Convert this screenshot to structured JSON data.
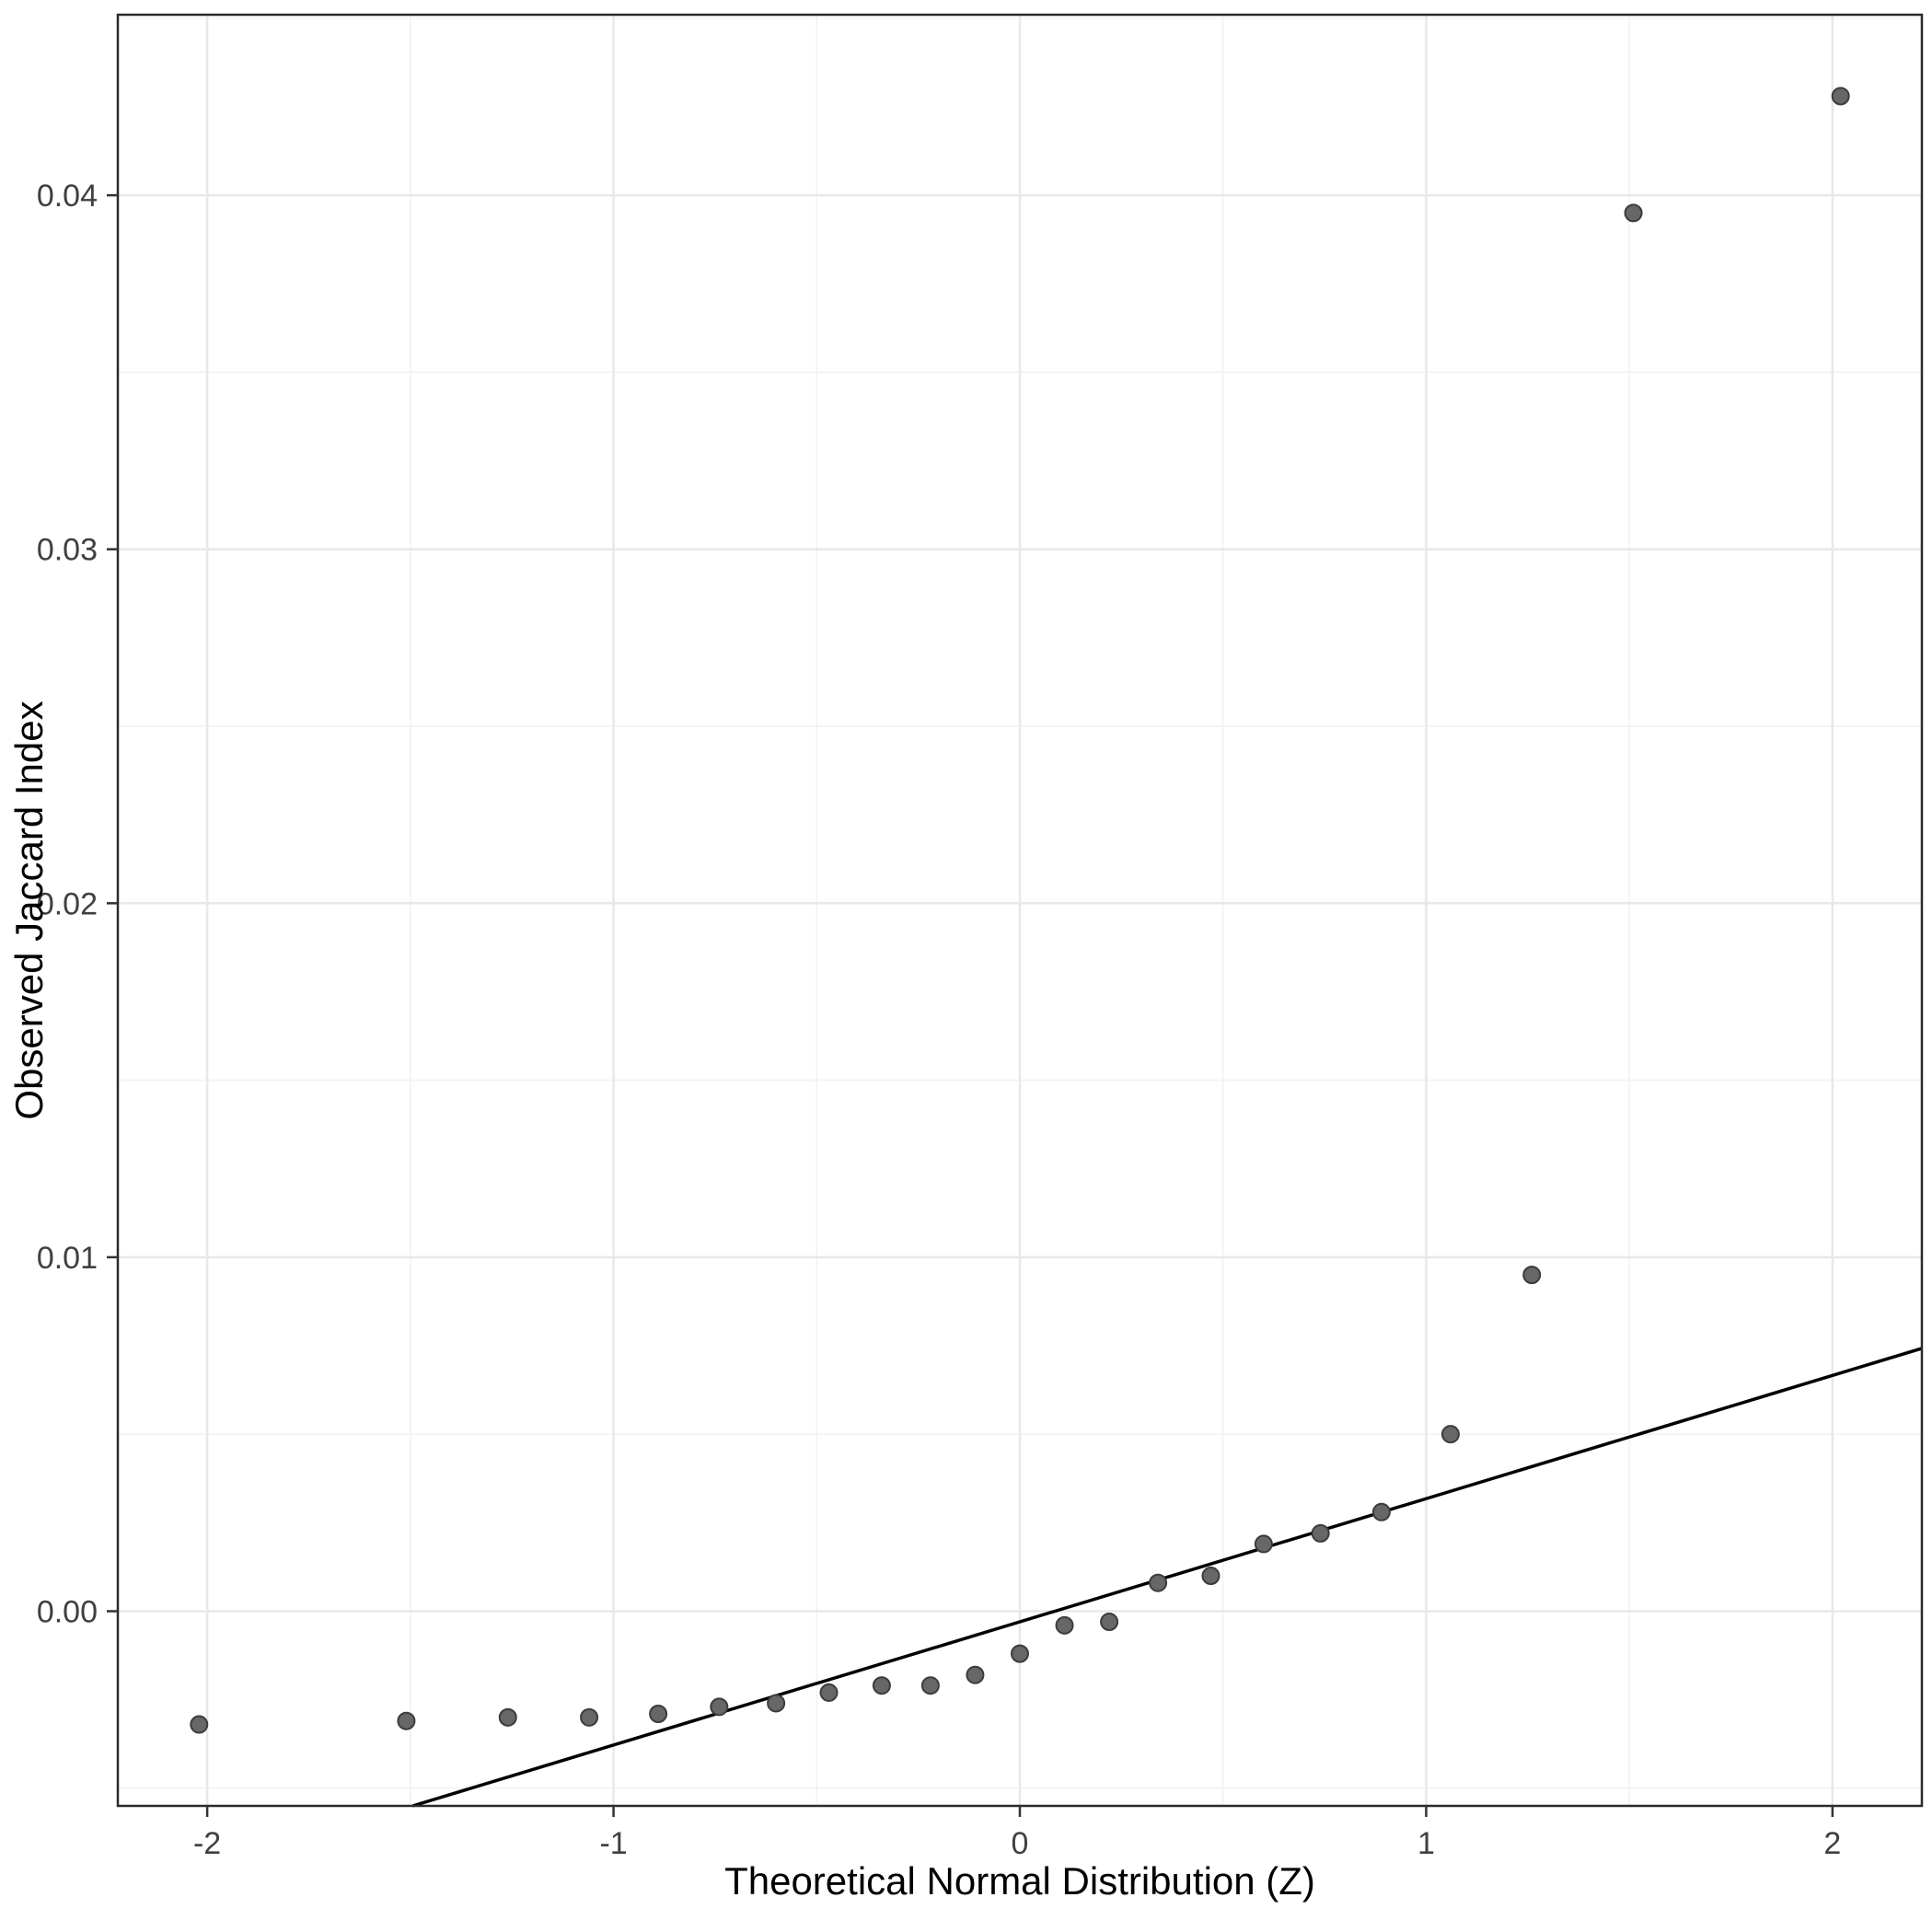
{
  "chart_data": {
    "type": "scatter",
    "subtype": "qq-plot",
    "title": "",
    "xlabel": "Theoretical Normal Distribution (Z)",
    "ylabel": "Observed Jaccard Index",
    "xlim": [
      -2.22,
      2.22
    ],
    "ylim": [
      -0.0055,
      0.0451
    ],
    "x_ticks": [
      -2,
      -1,
      0,
      1,
      2
    ],
    "x_tick_labels": [
      "-2",
      "-1",
      "0",
      "1",
      "2"
    ],
    "y_ticks": [
      0,
      0.01,
      0.02,
      0.03,
      0.04
    ],
    "y_tick_labels": [
      "0.00",
      "0.01",
      "0.02",
      "0.03",
      "0.04"
    ],
    "x_minor_ticks": [
      -1.5,
      -0.5,
      0.5,
      1.5
    ],
    "y_minor_ticks": [
      -0.005,
      0.005,
      0.015,
      0.025,
      0.035,
      0.045
    ],
    "grid": true,
    "legend": "none",
    "points": [
      {
        "z": -2.02,
        "value": -0.0032
      },
      {
        "z": -1.51,
        "value": -0.0031
      },
      {
        "z": -1.26,
        "value": -0.003
      },
      {
        "z": -1.06,
        "value": -0.003
      },
      {
        "z": -0.89,
        "value": -0.0029
      },
      {
        "z": -0.74,
        "value": -0.0027
      },
      {
        "z": -0.6,
        "value": -0.0026
      },
      {
        "z": -0.47,
        "value": -0.0023
      },
      {
        "z": -0.34,
        "value": -0.0021
      },
      {
        "z": -0.22,
        "value": -0.0021
      },
      {
        "z": -0.11,
        "value": -0.0018
      },
      {
        "z": 0.0,
        "value": -0.0012
      },
      {
        "z": 0.11,
        "value": -0.0004
      },
      {
        "z": 0.22,
        "value": -0.0003
      },
      {
        "z": 0.34,
        "value": 0.0008
      },
      {
        "z": 0.47,
        "value": 0.001
      },
      {
        "z": 0.6,
        "value": 0.0019
      },
      {
        "z": 0.74,
        "value": 0.0022
      },
      {
        "z": 0.89,
        "value": 0.0028
      },
      {
        "z": 1.06,
        "value": 0.005
      },
      {
        "z": 1.26,
        "value": 0.0095
      },
      {
        "z": 1.51,
        "value": 0.0395
      },
      {
        "z": 2.02,
        "value": 0.0428
      }
    ],
    "reference_line": {
      "slope": 0.00348,
      "intercept": -0.0003,
      "color": "#000000",
      "width": 3.5
    },
    "point_style": {
      "fill": "#676767",
      "stroke": "#3c3c3c",
      "stroke_width": 2,
      "radius": 9
    },
    "colors": {
      "background": "#ffffff",
      "panel_background": "#ffffff",
      "grid_major": "#e8e8e8",
      "grid_minor": "#f3f3f3",
      "panel_border": "#2b2b2b",
      "tick_mark": "#333333",
      "axis_text": "#404040",
      "axis_title": "#000000"
    }
  }
}
